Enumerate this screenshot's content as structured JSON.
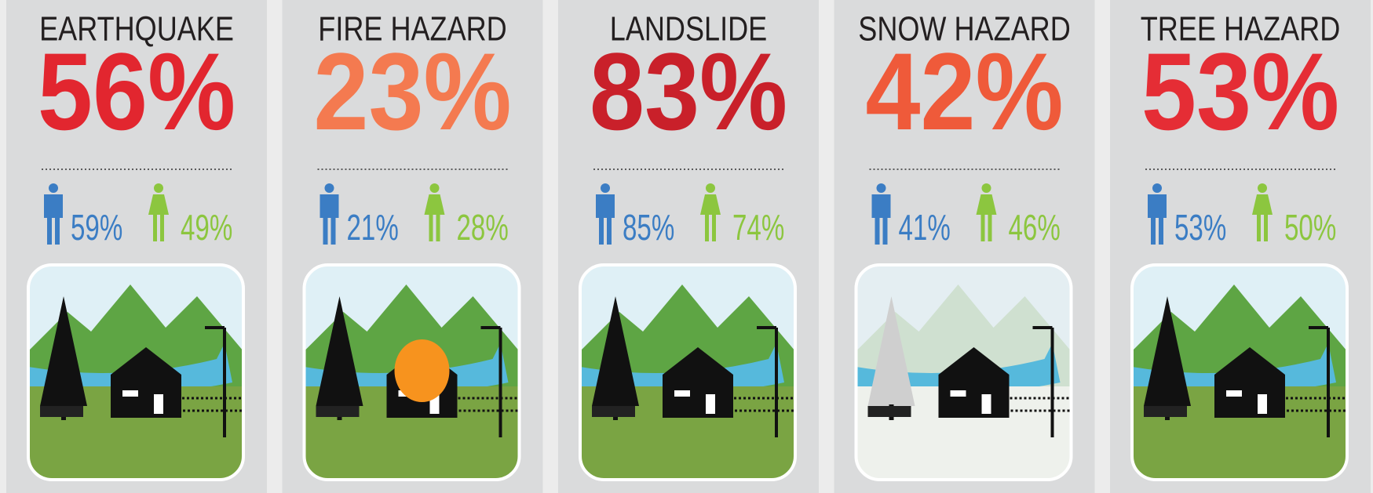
{
  "cards": [
    {
      "title": "EARTHQUAKE",
      "percent": "56%",
      "color": "#e2262f",
      "male": "59%",
      "female": "49%"
    },
    {
      "title": "FIRE HAZARD",
      "percent": "23%",
      "color": "#f47a50",
      "male": "21%",
      "female": "28%"
    },
    {
      "title": "LANDSLIDE",
      "percent": "83%",
      "color": "#c9202a",
      "male": "85%",
      "female": "74%"
    },
    {
      "title": "SNOW HAZARD",
      "percent": "42%",
      "color": "#ef5a3a",
      "male": "41%",
      "female": "46%"
    },
    {
      "title": "TREE HAZARD",
      "percent": "53%",
      "color": "#e52d35",
      "male": "53%",
      "female": "50%"
    }
  ]
}
